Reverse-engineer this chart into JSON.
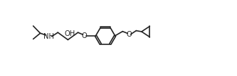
{
  "bg_color": "#ffffff",
  "line_color": "#222222",
  "line_width": 1.2,
  "font_size": 7.2,
  "figsize": [
    3.33,
    1.08
  ],
  "dpi": 100,
  "xlim": [
    0,
    9.5
  ],
  "ylim": [
    0,
    2.7
  ]
}
